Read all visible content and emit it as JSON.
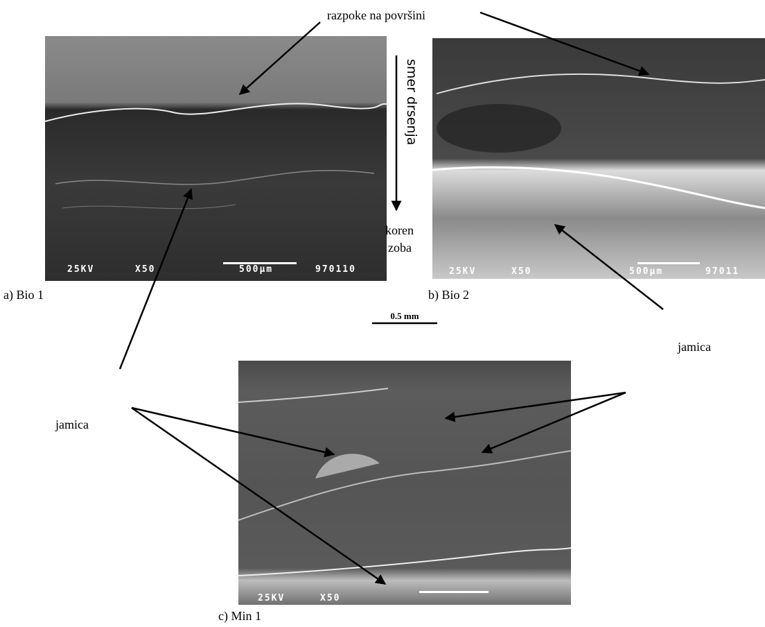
{
  "annotations": {
    "cracks": "razpoke na površini",
    "direction": "smer drsenja",
    "root_line1": "koren",
    "root_line2": "zoba",
    "scale": "0.5 mm",
    "pit_b": "jamica",
    "pit_a": "jamica"
  },
  "panels": [
    {
      "caption": "a) Bio 1",
      "overlay": [
        "25KV",
        "X50",
        "500µm",
        "970110"
      ]
    },
    {
      "caption": "b) Bio 2",
      "overlay": [
        "25KV",
        "X50",
        "500µm",
        "97011"
      ]
    },
    {
      "caption": "c) Min 1",
      "overlay": [
        "25KV",
        "X50"
      ]
    }
  ]
}
